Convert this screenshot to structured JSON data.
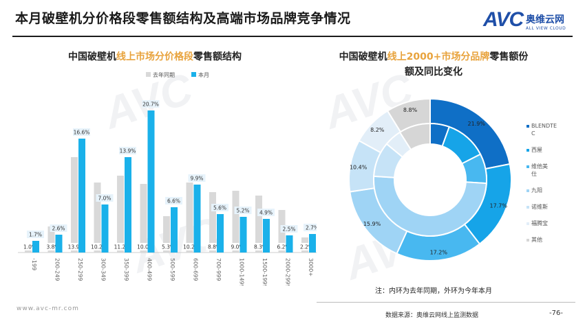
{
  "header": {
    "title": "本月破壁机分价格段零售额结构及高端市场品牌竞争情况",
    "logo_mark": "AVC",
    "logo_cn": "奥维云网",
    "logo_en": "ALL VIEW CLOUD"
  },
  "left_chart": {
    "title_pre": "中国破壁机",
    "title_hl": "线上市场分价格段",
    "title_post": "零售额结构"
  },
  "right_chart": {
    "title_line1_pre": "中国破壁机",
    "title_line1_hl": "线上2000+市场分品牌",
    "title_line1_post": "零售额份",
    "title_line2": "额及同比变化"
  },
  "footer": {
    "url": "www.avc-mr.com",
    "note": "注：内环为去年同期，外环为今年本月",
    "source": "数据来源：奥维云网线上监测数据",
    "page": "-76-"
  },
  "chart_data": [
    {
      "type": "bar",
      "categories": [
        "-199",
        "200-249",
        "250-299",
        "300-349",
        "350-399",
        "400-499",
        "500-599",
        "600-699",
        "700-999",
        "1000-1499",
        "1500-1999",
        "2000-2999",
        "3000+"
      ],
      "series": [
        {
          "name": "去年同期",
          "color": "#d9d9d9",
          "values": [
            1.0,
            3.8,
            13.9,
            10.2,
            11.2,
            10.0,
            5.3,
            10.2,
            8.8,
            9.0,
            8.3,
            6.2,
            2.2
          ],
          "labels": [
            "1.0%",
            "3.8%",
            "13.9%",
            "10.2%",
            "11.2%",
            "10.0%",
            "5.3%",
            "10.2%",
            "8.8%",
            "9.0%",
            "8.3%",
            "6.2%",
            "2.2%"
          ]
        },
        {
          "name": "本月",
          "color": "#1ab1ea",
          "values": [
            1.7,
            2.6,
            16.6,
            7.0,
            13.9,
            20.7,
            6.6,
            9.9,
            5.6,
            5.2,
            4.9,
            2.5,
            2.7
          ],
          "labels": [
            "1.7%",
            "2.6%",
            "16.6%",
            "7.0%",
            "13.9%",
            "20.7%",
            "6.6%",
            "9.9%",
            "5.6%",
            "5.2%",
            "4.9%",
            "2.5%",
            "2.7%"
          ]
        }
      ],
      "legend_position": "top"
    },
    {
      "type": "pie",
      "categories": [
        "BLENDTEC",
        "西屋",
        "维他美仕",
        "九阳",
        "诺维斯",
        "福腾宝",
        "其他"
      ],
      "legend_labels": [
        "BLENDTE C",
        "西屋",
        "维他美 仕",
        "九阳",
        "诺维斯",
        "福腾宝",
        "其他"
      ],
      "colors": [
        "#0f6fc6",
        "#16a4e8",
        "#48b8f0",
        "#9fd4f5",
        "#c6e3f7",
        "#e2eef8",
        "#d6d6d6"
      ],
      "series": [
        {
          "name": "外环为今年本月",
          "values": [
            21.9,
            17.7,
            17.2,
            15.9,
            10.4,
            8.2,
            8.8
          ],
          "labels": [
            "21.9%",
            "17.7%",
            "17.2%",
            "15.9%",
            "10.4%",
            "8.2%",
            "8.8%"
          ]
        },
        {
          "name": "内环为去年同期",
          "values": [
            5.5,
            12.0,
            8.5,
            50.0,
            10.0,
            5.0,
            9.0
          ],
          "labels": []
        }
      ],
      "legend_position": "right"
    }
  ]
}
